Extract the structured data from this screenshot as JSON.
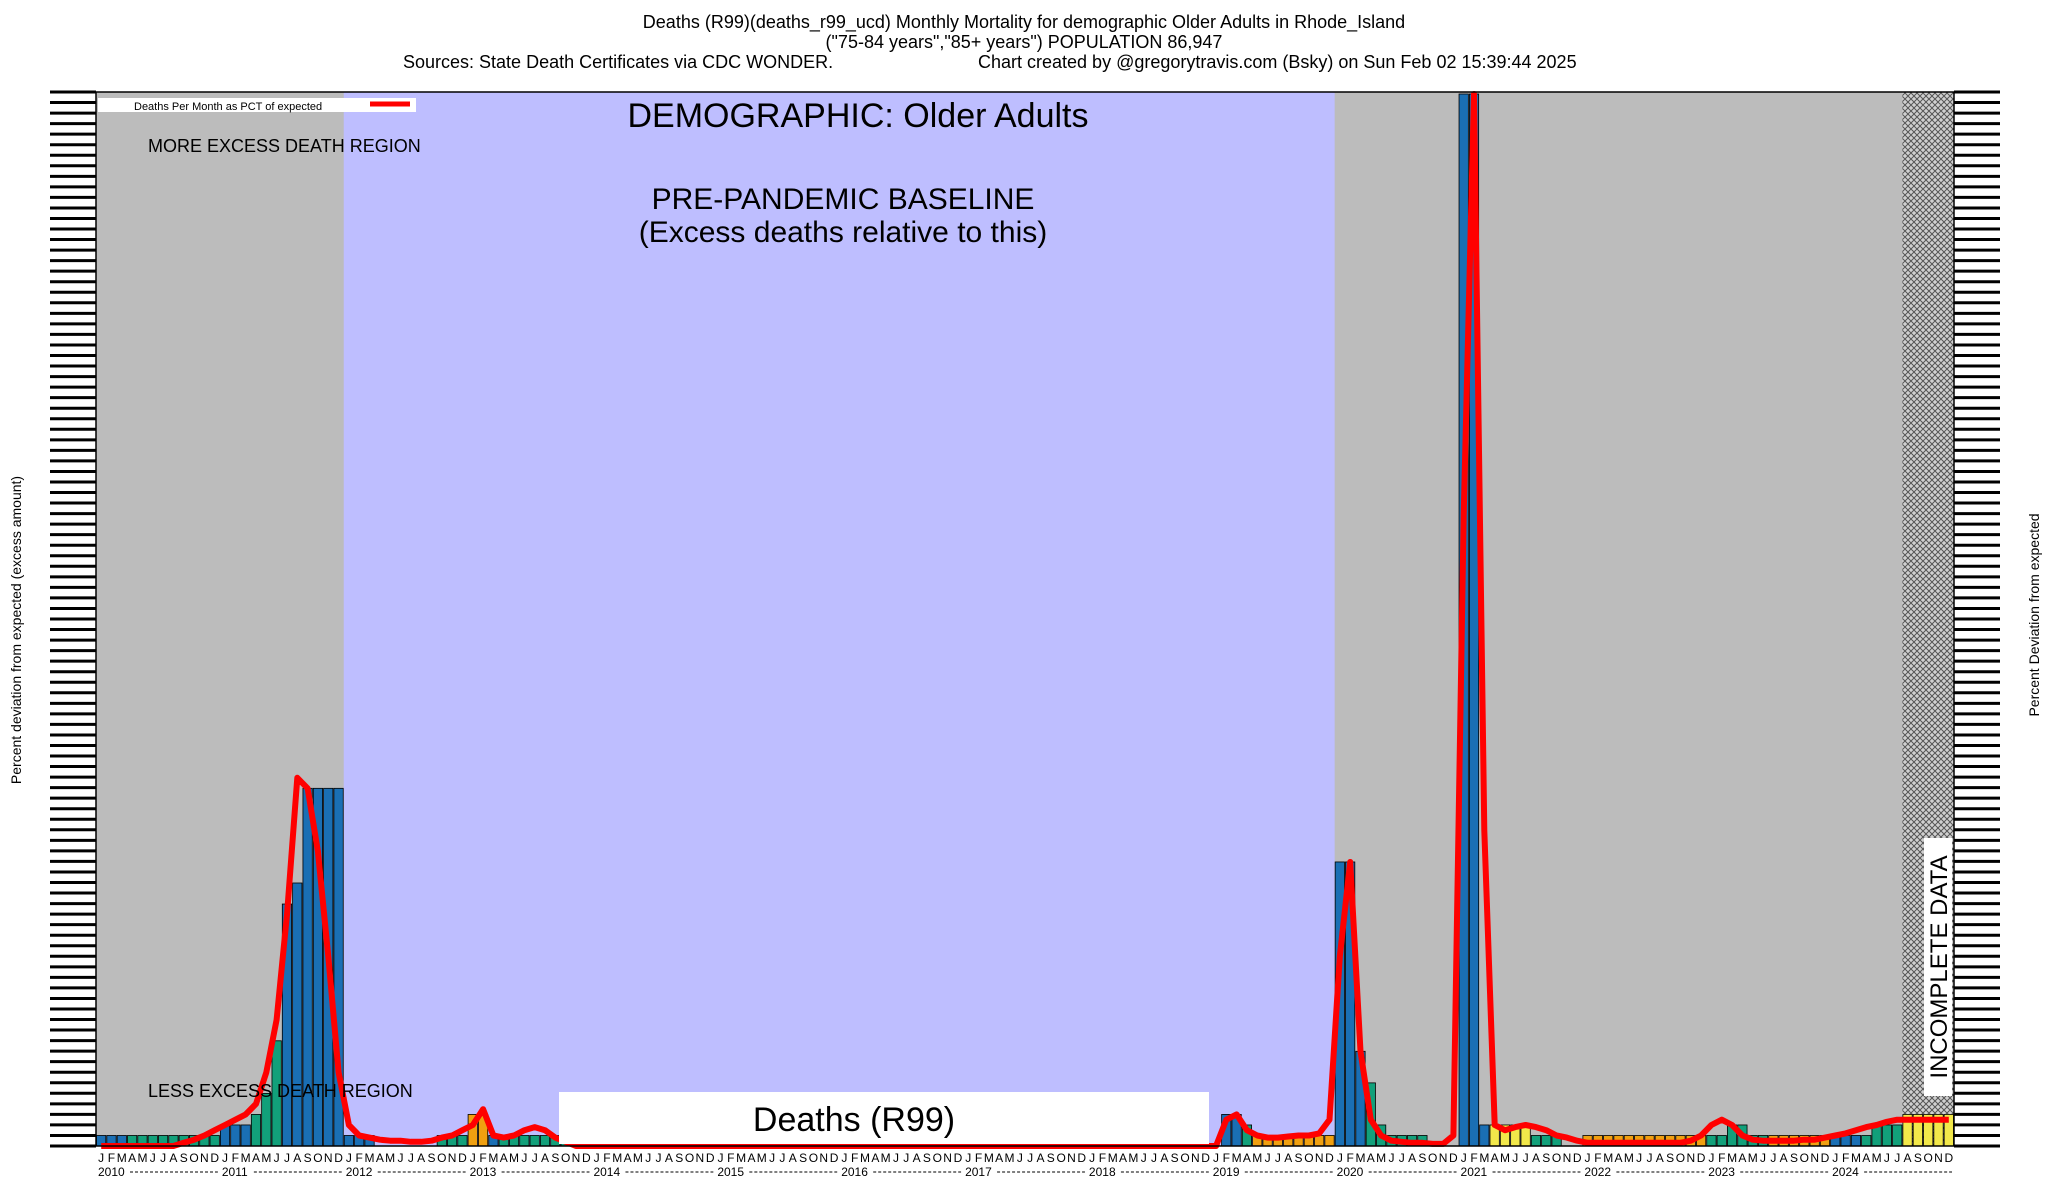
{
  "header": {
    "title_line1": "Deaths (R99)(deaths_r99_ucd) Monthly Mortality for demographic Older Adults in Rhode_Island",
    "title_line2": "(\"75-84 years\",\"85+ years\") POPULATION 86,947",
    "sources": "Sources: State Death Certificates via CDC WONDER.",
    "credit": "Chart created by @gregorytravis.com (Bsky) on Sun Feb 02 15:39:44 2025"
  },
  "chart_data": {
    "type": "bar",
    "title": "Deaths (R99)(deaths_r99_ucd) Monthly Mortality for demographic Older Adults in Rhode_Island",
    "ylabel_left": "Percent deviation from expected (excess amount)",
    "ylabel_right": "Percent Deviation from expected",
    "legend": {
      "entry": "Deaths Per Month as PCT of expected",
      "color": "#ff0000",
      "placement": "top-left"
    },
    "annotations": {
      "demographic": "DEMOGRAPHIC: Older Adults",
      "baseline_line1": "PRE-PANDEMIC BASELINE",
      "baseline_line2": "(Excess deaths relative to this)",
      "more_excess": "MORE EXCESS DEATH REGION",
      "less_excess": "LESS EXCESS DEATH REGION",
      "incomplete": "INCOMPLETE DATA",
      "cause_label": "Deaths (R99)"
    },
    "month_letters": [
      "J",
      "F",
      "M",
      "A",
      "M",
      "J",
      "J",
      "A",
      "S",
      "O",
      "N",
      "D"
    ],
    "years": [
      "2010",
      "2011",
      "2012",
      "2013",
      "2014",
      "2015",
      "2016",
      "2017",
      "2018",
      "2019",
      "2020",
      "2021",
      "2022",
      "2023",
      "2024"
    ],
    "baseline_period": {
      "start": "2012-01",
      "end": "2019-12"
    },
    "incomplete_period": {
      "start": "2024-08",
      "end": "2024-12"
    },
    "ylim": [
      0,
      100
    ],
    "palette": {
      "blue": "#1a6fb4",
      "green": "#12a07a",
      "orange": "#f0a010",
      "yellow": "#f2e84a",
      "red": "#ff0000",
      "grey": "#bcbcbc",
      "baseline": "#bebeff"
    },
    "series": [
      {
        "values": [
          1,
          1,
          1,
          1,
          1,
          1,
          1,
          1,
          1,
          1,
          1,
          1,
          2,
          2,
          2,
          3,
          5,
          10,
          23,
          25,
          34,
          34,
          34,
          34,
          1,
          1,
          1,
          0,
          0,
          0,
          0,
          0,
          0,
          1,
          1,
          1,
          3,
          3,
          1,
          1,
          1,
          1,
          1,
          1,
          1,
          1,
          0,
          0,
          0,
          0,
          0,
          0,
          0,
          0,
          0,
          0,
          0,
          0,
          0,
          0,
          0,
          0,
          0,
          0,
          0,
          0,
          0,
          0,
          0,
          0,
          0,
          0,
          0,
          0,
          0,
          0,
          0,
          0,
          0,
          0,
          0,
          0,
          0,
          0,
          0,
          0,
          0,
          0,
          0,
          0,
          0,
          0,
          0,
          0,
          0,
          0,
          0,
          0,
          0,
          0,
          0,
          0,
          0,
          0,
          0,
          0,
          0,
          0,
          0,
          3,
          3,
          2,
          1,
          1,
          1,
          1,
          1,
          1,
          1,
          1,
          27,
          27,
          9,
          6,
          2,
          1,
          1,
          1,
          1,
          0,
          0,
          0,
          100,
          100,
          2,
          2,
          2,
          2,
          2,
          1,
          1,
          1,
          0,
          0,
          1,
          1,
          1,
          1,
          1,
          1,
          1,
          1,
          1,
          1,
          1,
          1,
          1,
          1,
          2,
          2,
          1,
          1,
          1,
          1,
          1,
          1,
          1,
          1,
          1,
          1,
          1,
          1,
          2,
          2,
          2,
          3,
          3,
          3,
          3,
          3
        ]
      }
    ],
    "line_values": [
      0,
      0,
      0,
      0,
      0,
      0,
      0,
      0,
      0.3,
      0.6,
      1,
      1.5,
      2,
      2.5,
      3,
      4,
      7,
      12,
      22,
      35,
      34,
      28,
      18,
      7,
      2,
      1,
      0.8,
      0.6,
      0.5,
      0.5,
      0.4,
      0.4,
      0.5,
      0.8,
      1,
      1.5,
      2,
      3.5,
      1,
      0.8,
      1,
      1.5,
      1.8,
      1.5,
      0.8,
      0.4,
      0,
      0,
      0,
      0,
      0,
      0,
      0,
      0,
      0,
      0,
      0,
      0,
      0,
      0,
      0,
      0,
      0,
      0,
      0,
      0,
      0,
      0,
      0,
      0,
      0,
      0,
      0,
      0,
      0,
      0,
      0,
      0,
      0,
      0,
      0,
      0,
      0,
      0,
      0,
      0,
      0,
      0,
      0,
      0,
      0,
      0,
      0,
      0,
      0,
      0,
      0,
      0,
      0,
      0,
      0,
      0,
      0,
      0,
      0,
      0,
      0,
      0,
      0,
      2.5,
      3,
      1.5,
      1,
      0.8,
      0.8,
      0.9,
      1,
      1,
      1.2,
      2.5,
      18,
      27,
      9,
      2.5,
      1,
      0.5,
      0.4,
      0.3,
      0.3,
      0.2,
      0.2,
      1,
      60,
      100,
      30,
      2,
      1.5,
      1.8,
      2,
      1.8,
      1.5,
      1,
      0.8,
      0.5,
      0.3,
      0.3,
      0.3,
      0.3,
      0.3,
      0.3,
      0.3,
      0.3,
      0.3,
      0.3,
      0.5,
      1,
      2,
      2.5,
      2,
      1,
      0.6,
      0.5,
      0.5,
      0.5,
      0.5,
      0.6,
      0.6,
      0.8,
      1,
      1.2,
      1.5,
      1.8,
      2,
      2.3,
      2.5,
      2.5,
      2.5,
      2.5,
      2.5,
      2.5
    ]
  }
}
